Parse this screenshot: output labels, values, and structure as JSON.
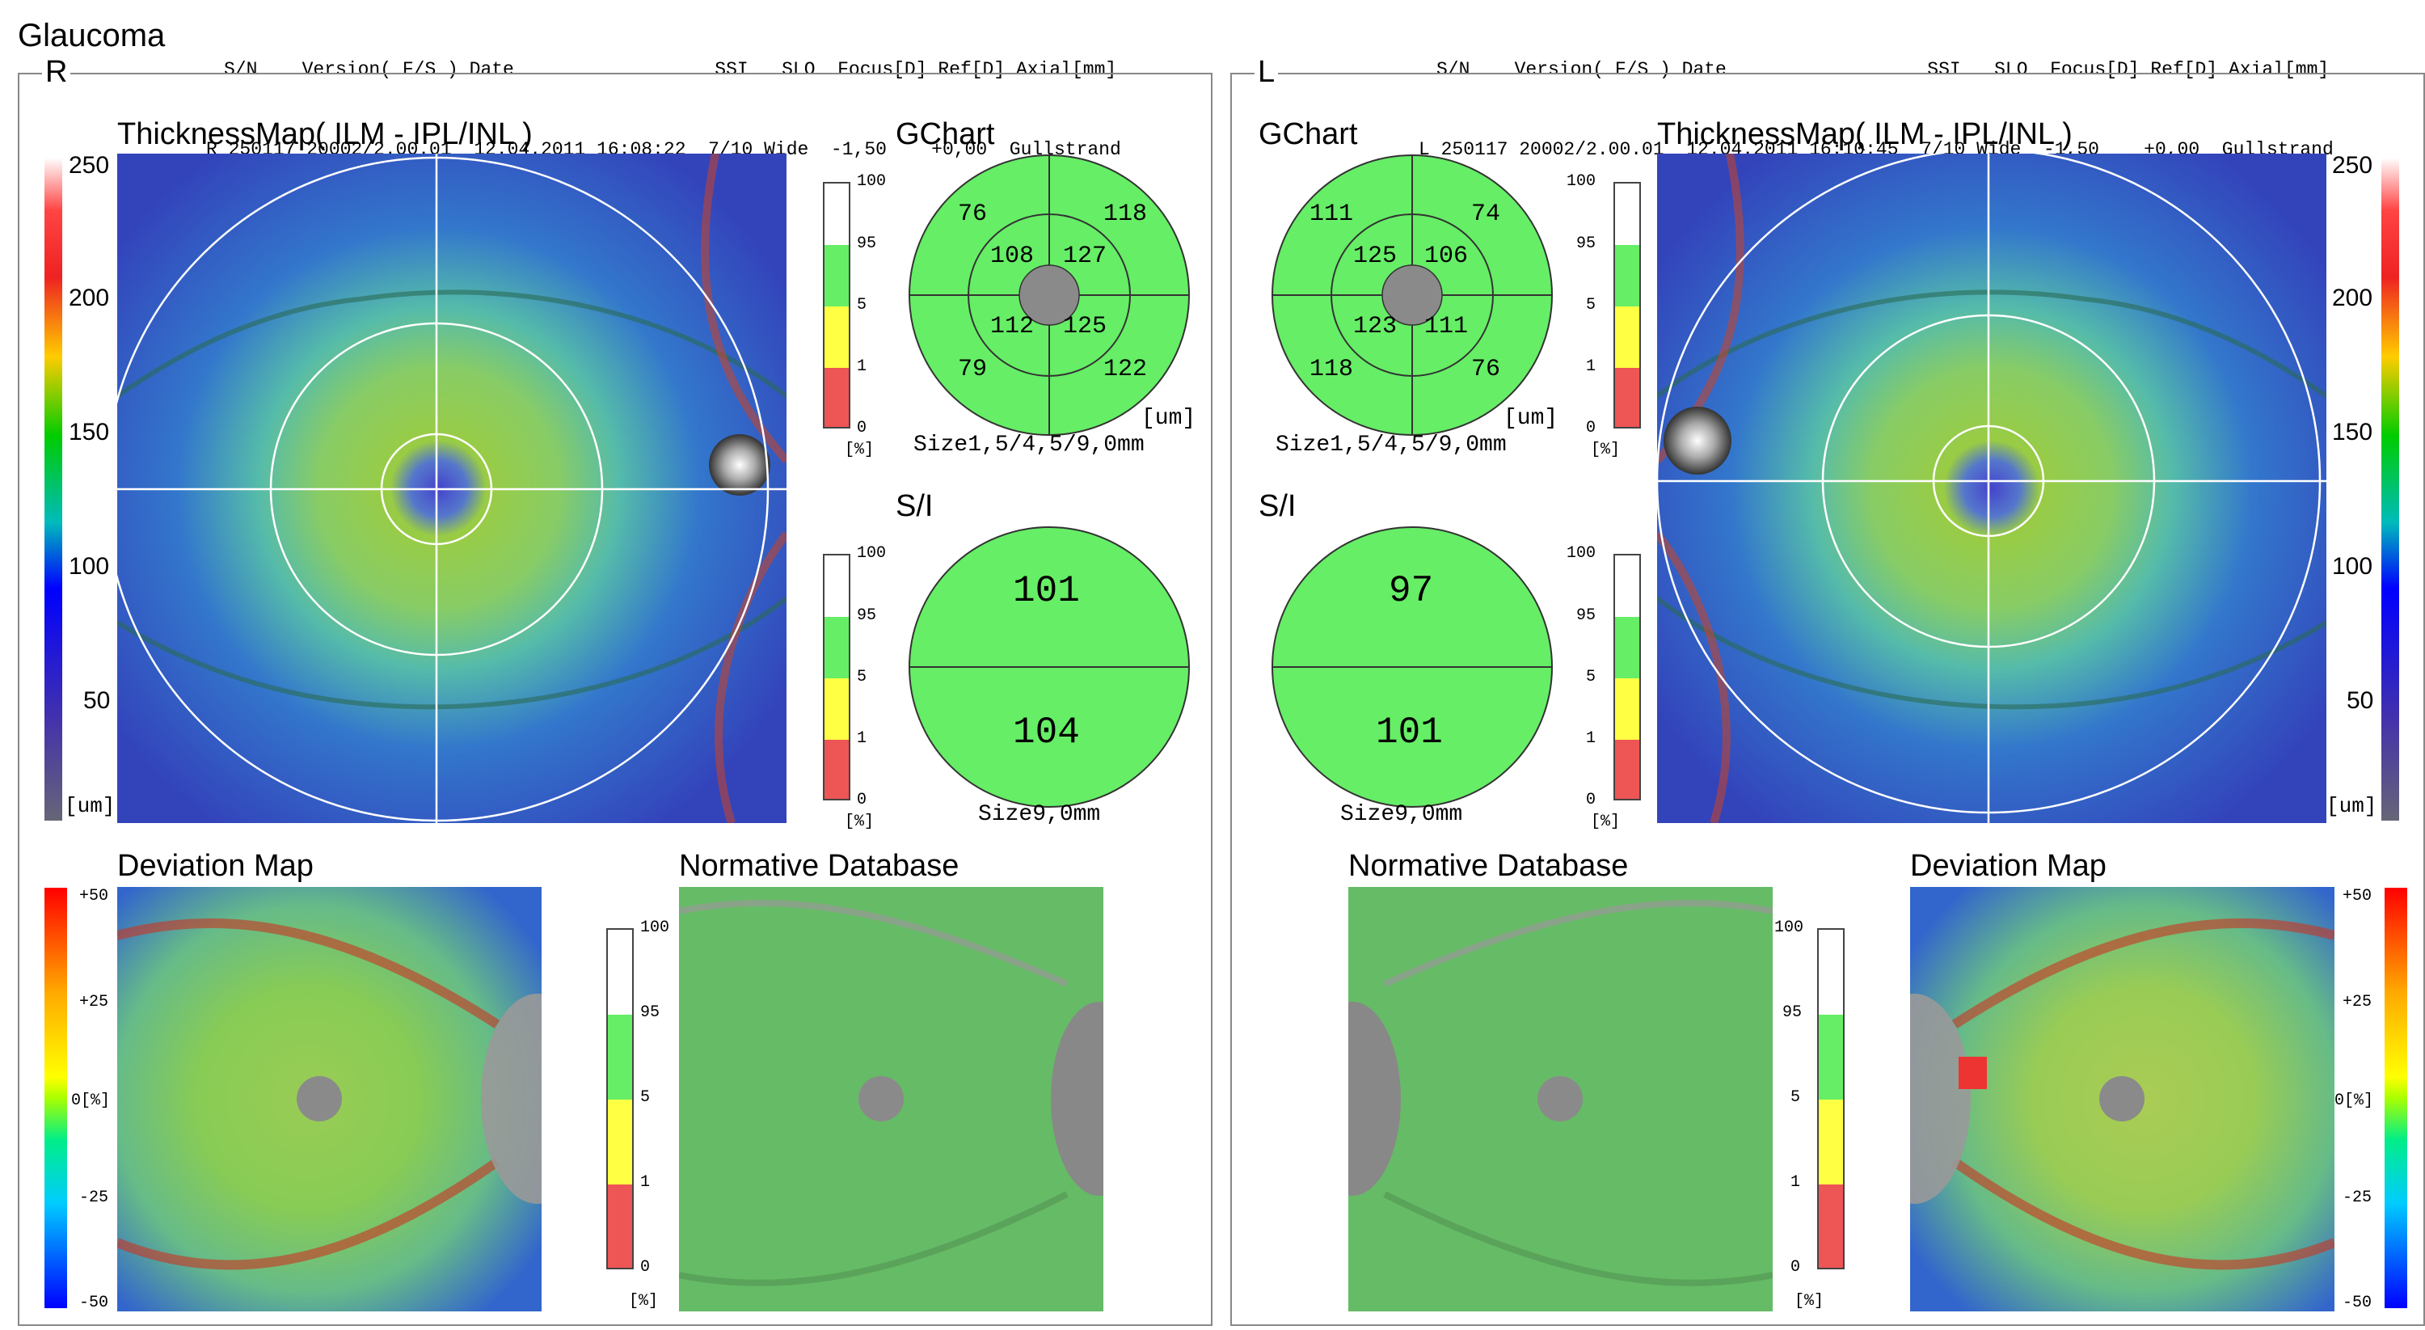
{
  "report_title": "Glaucoma",
  "colors": {
    "normal_green": "#66ee66",
    "borderline_yellow": "#ffff44",
    "abnormal_red": "#ee5555",
    "supernormal_white": "#ffffff",
    "disc_gray": "#8a8a8a"
  },
  "right_eye": {
    "eye": "R",
    "header_labels": "S/N    Version( F/S ) Date                  SSI   SLO  Focus[D] Ref[D] Axial[mm]",
    "header_values": "R 250117 20002/2.00.01  12.04.2011 16:08:22  7/10 Wide  -1,50    +0,00  Gullstrand",
    "panel_label": "R",
    "thickness_title": "ThicknessMap( ILM - IPL/INL )",
    "thickness_ticks": [
      "250",
      "200",
      "150",
      "100",
      "50"
    ],
    "thickness_unit": "[um]",
    "gchart_title": "GChart",
    "gchart_values": {
      "outer_tl": "76",
      "outer_tr": "118",
      "inner_tl": "108",
      "inner_tr": "127",
      "inner_bl": "112",
      "inner_br": "125",
      "outer_bl": "79",
      "outer_br": "122"
    },
    "gchart_unit": "[um]",
    "gchart_size": "Size1,5/4,5/9,0mm",
    "si_title": "S/I",
    "si_superior": "101",
    "si_inferior": "104",
    "si_size": "Size9,0mm",
    "percent_ticks": [
      "100",
      "95",
      "5",
      "1",
      "0"
    ],
    "percent_unit": "[%]",
    "deviation_title": "Deviation Map",
    "deviation_ticks": [
      "+50",
      "+25",
      "0[%]",
      "-25",
      "-50"
    ],
    "normative_title": "Normative Database"
  },
  "left_eye": {
    "eye": "L",
    "header_labels": "S/N    Version( F/S ) Date                  SSI   SLO  Focus[D] Ref[D] Axial[mm]",
    "header_values": "L 250117 20002/2.00.01  12.04.2011 16:10:45  7/10 Wide  -1,50    +0,00  Gullstrand",
    "panel_label": "L",
    "thickness_title": "ThicknessMap( ILM - IPL/INL )",
    "thickness_ticks": [
      "250",
      "200",
      "150",
      "100",
      "50"
    ],
    "thickness_unit": "[um]",
    "gchart_title": "GChart",
    "gchart_values": {
      "outer_tl": "111",
      "outer_tr": "74",
      "inner_tl": "125",
      "inner_tr": "106",
      "inner_bl": "123",
      "inner_br": "111",
      "outer_bl": "118",
      "outer_br": "76"
    },
    "gchart_unit": "[um]",
    "gchart_size": "Size1,5/4,5/9,0mm",
    "si_title": "S/I",
    "si_superior": "97",
    "si_inferior": "101",
    "si_size": "Size9,0mm",
    "percent_ticks": [
      "100",
      "95",
      "5",
      "1",
      "0"
    ],
    "percent_unit": "[%]",
    "deviation_title": "Deviation Map",
    "deviation_ticks": [
      "+50",
      "+25",
      "0[%]",
      "-25",
      "-50"
    ],
    "normative_title": "Normative Database"
  }
}
